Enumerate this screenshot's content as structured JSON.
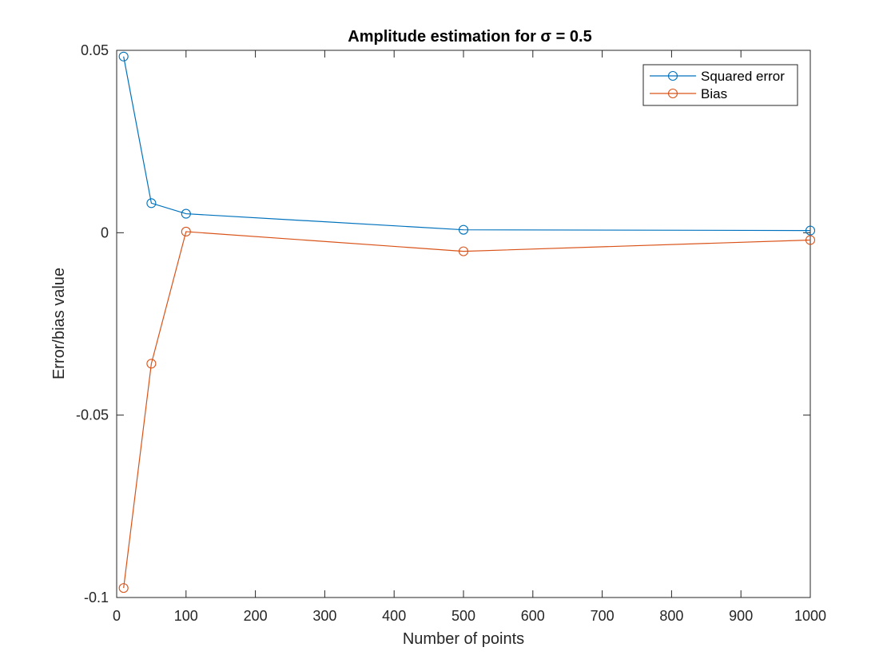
{
  "chart_data": {
    "type": "line",
    "title": "Amplitude estimation for σ = 0.5",
    "xlabel": "Number of points",
    "ylabel": "Error/bias value",
    "xlim": [
      0,
      1000
    ],
    "ylim": [
      -0.1,
      0.05
    ],
    "xticks": [
      0,
      100,
      200,
      300,
      400,
      500,
      600,
      700,
      800,
      900,
      1000
    ],
    "xtick_labels": [
      "0",
      "100",
      "200",
      "300",
      "400",
      "500",
      "600",
      "700",
      "800",
      "900",
      "1000"
    ],
    "yticks": [
      -0.1,
      -0.05,
      0,
      0.05
    ],
    "ytick_labels": [
      "-0.1",
      "-0.05",
      "0",
      "0.05"
    ],
    "grid": false,
    "legend_position": "top-right",
    "x": [
      10,
      50,
      100,
      500,
      1000
    ],
    "series": [
      {
        "name": "Squared error",
        "color": "#0072BD",
        "marker": "circle",
        "values": [
          0.0483,
          0.0081,
          0.0052,
          0.0008,
          0.0006
        ]
      },
      {
        "name": "Bias",
        "color": "#D95319",
        "marker": "circle",
        "values": [
          -0.0974,
          -0.0359,
          0.0003,
          -0.0051,
          -0.002
        ]
      }
    ]
  }
}
